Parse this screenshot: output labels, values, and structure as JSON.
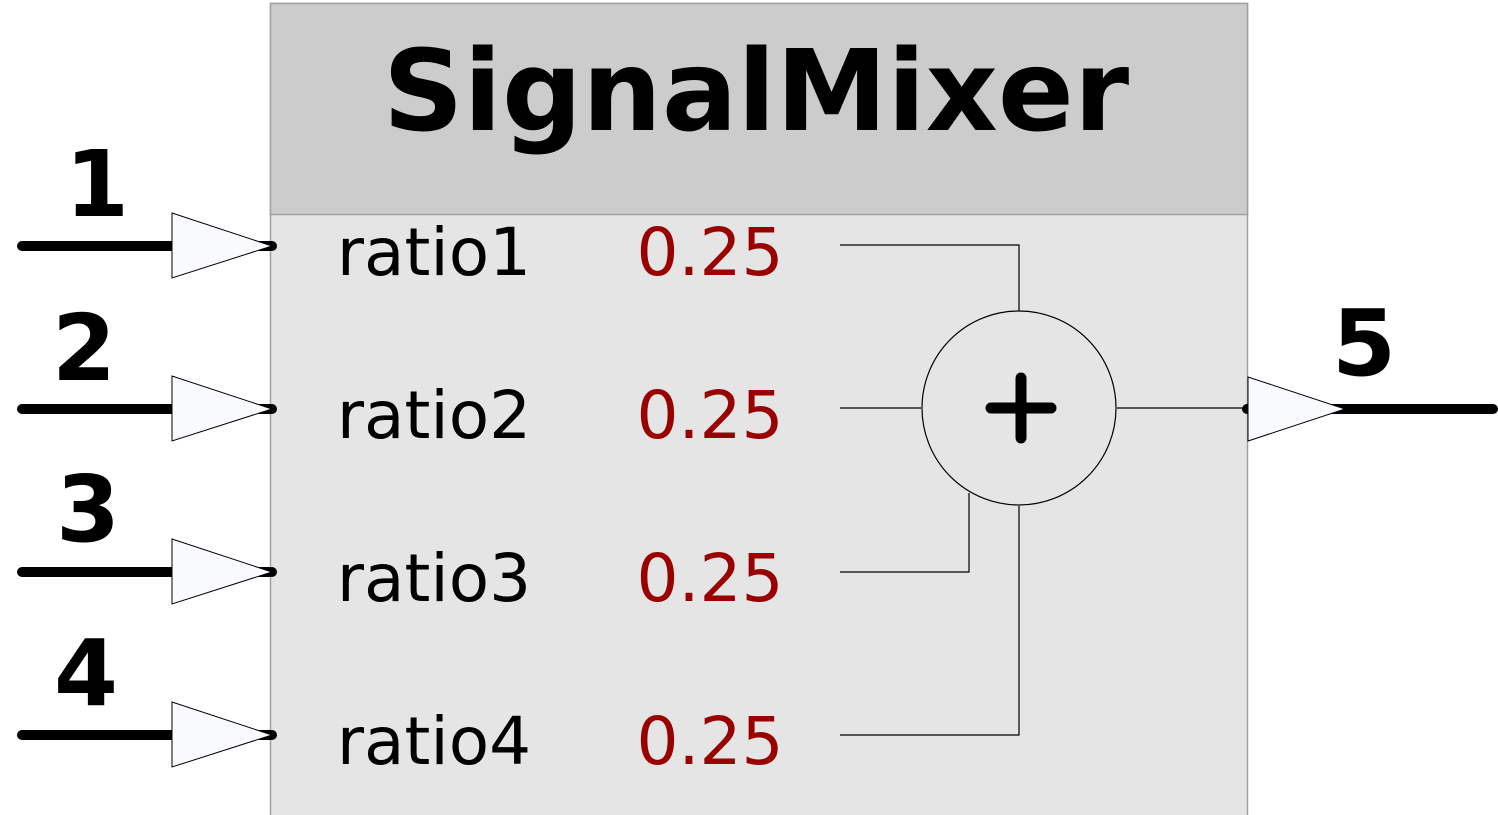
{
  "block": {
    "title": "SignalMixer",
    "header_color": "#cccccc",
    "body_color": "#e5e5e5",
    "operator_symbol": "+"
  },
  "inputs": [
    {
      "pin": "1",
      "label": "ratio1",
      "value": "0.25"
    },
    {
      "pin": "2",
      "label": "ratio2",
      "value": "0.25"
    },
    {
      "pin": "3",
      "label": "ratio3",
      "value": "0.25"
    },
    {
      "pin": "4",
      "label": "ratio4",
      "value": "0.25"
    }
  ],
  "output": {
    "pin": "5"
  },
  "colors": {
    "value_text": "#990000",
    "port_fill": "#f8fafd"
  },
  "icons": {
    "input_port": "triangle-arrow-icon",
    "output_port": "triangle-arrow-icon",
    "sum": "sum-circle-icon"
  }
}
